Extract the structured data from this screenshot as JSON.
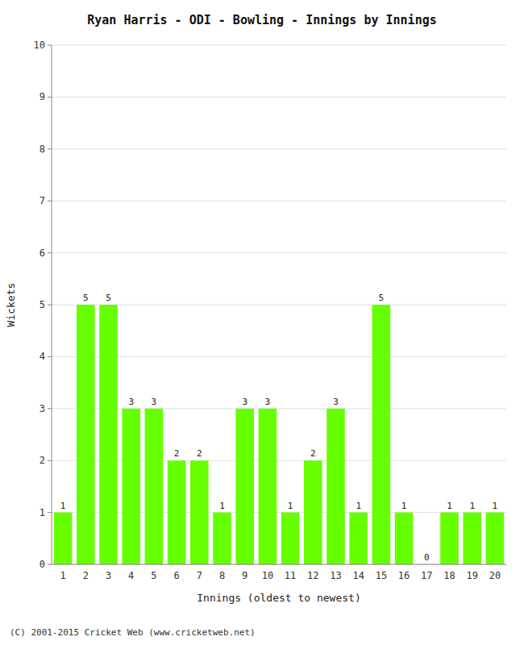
{
  "chart_data": {
    "type": "bar",
    "title": "Ryan Harris - ODI - Bowling - Innings by Innings",
    "x_label": "Innings (oldest to newest)",
    "y_label": "Wickets",
    "categories": [
      1,
      2,
      3,
      4,
      5,
      6,
      7,
      8,
      9,
      10,
      11,
      12,
      13,
      14,
      15,
      16,
      17,
      18,
      19,
      20
    ],
    "values": [
      1,
      5,
      5,
      3,
      3,
      2,
      2,
      1,
      3,
      3,
      1,
      2,
      3,
      1,
      5,
      1,
      0,
      1,
      1,
      1
    ],
    "color": "#66FF00",
    "ylim": [
      0,
      10
    ],
    "yticks": [
      0,
      1,
      2,
      3,
      4,
      5,
      6,
      7,
      8,
      9,
      10
    ],
    "grid": true,
    "data_labels": true,
    "annotations": [
      "(C) 2001-2015 Cricket Web (www.cricketweb.net)"
    ]
  }
}
